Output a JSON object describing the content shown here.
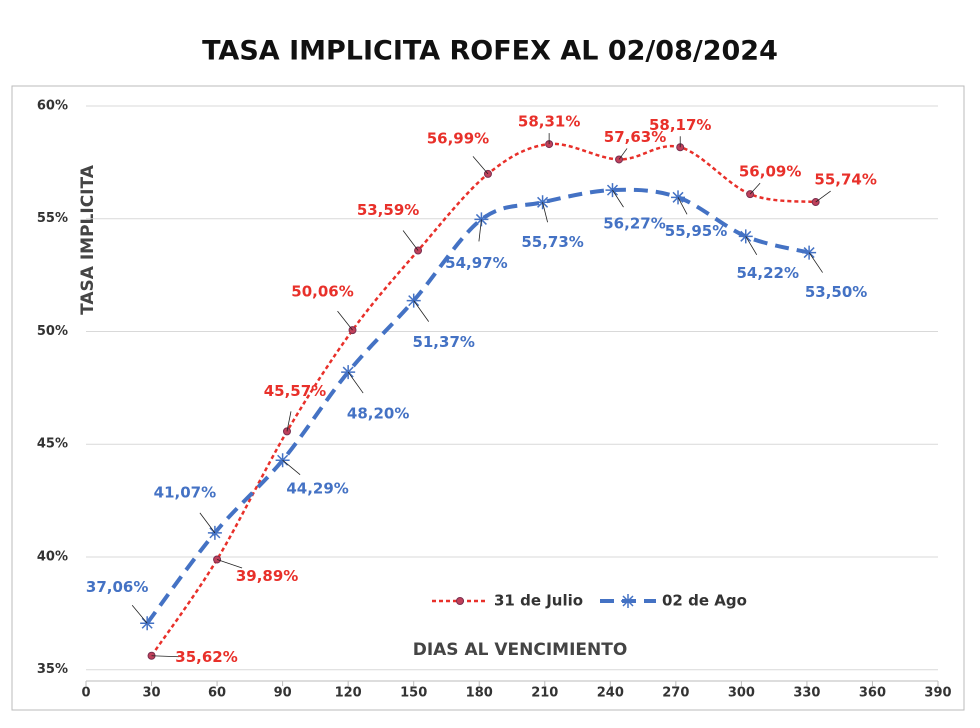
{
  "chart_data": {
    "type": "line",
    "title": "TASA IMPLICITA ROFEX AL 02/08/2024",
    "x_label": "DIAS AL VENCIMIENTO",
    "y_label": "TASA IMPLICITA",
    "xlim": [
      0,
      390
    ],
    "xticks": [
      0,
      30,
      60,
      90,
      120,
      150,
      180,
      210,
      240,
      270,
      300,
      330,
      360,
      390
    ],
    "ylim": [
      34.5,
      60
    ],
    "yticks": [
      {
        "value": 35,
        "label": "35%"
      },
      {
        "value": 40,
        "label": "40%"
      },
      {
        "value": 45,
        "label": "45%"
      },
      {
        "value": 50,
        "label": "50%"
      },
      {
        "value": 55,
        "label": "55%"
      },
      {
        "value": 60,
        "label": "60%"
      }
    ],
    "grid": true,
    "legend": "bottom",
    "series": [
      {
        "name": "31 de Julio",
        "color": "#e8302a",
        "dash": "4,3",
        "marker": "circle",
        "x": [
          30,
          60,
          92,
          122,
          152,
          184,
          212,
          244,
          272,
          304,
          334
        ],
        "values": [
          35.62,
          39.89,
          45.57,
          50.06,
          53.59,
          56.99,
          58.31,
          57.63,
          58.17,
          56.09,
          55.74
        ],
        "value_labels": [
          "35,62%",
          "39,89%",
          "45,57%",
          "50,06%",
          "53,59%",
          "56,99%",
          "58,31%",
          "57,63%",
          "58,17%",
          "56,09%",
          "55,74%"
        ]
      },
      {
        "name": "02 de Ago",
        "color": "#4472c4",
        "dash": "14,8",
        "marker": "star",
        "x": [
          28,
          59,
          90,
          120,
          150,
          181,
          209,
          241,
          271,
          302,
          331
        ],
        "values": [
          37.06,
          41.07,
          44.29,
          48.2,
          51.37,
          54.97,
          55.73,
          56.27,
          55.95,
          54.22,
          53.5
        ],
        "value_labels": [
          "37,06%",
          "41,07%",
          "44,29%",
          "48,20%",
          "51,37%",
          "54,97%",
          "55,73%",
          "56,27%",
          "55,95%",
          "54,22%",
          "53,50%"
        ]
      }
    ]
  }
}
